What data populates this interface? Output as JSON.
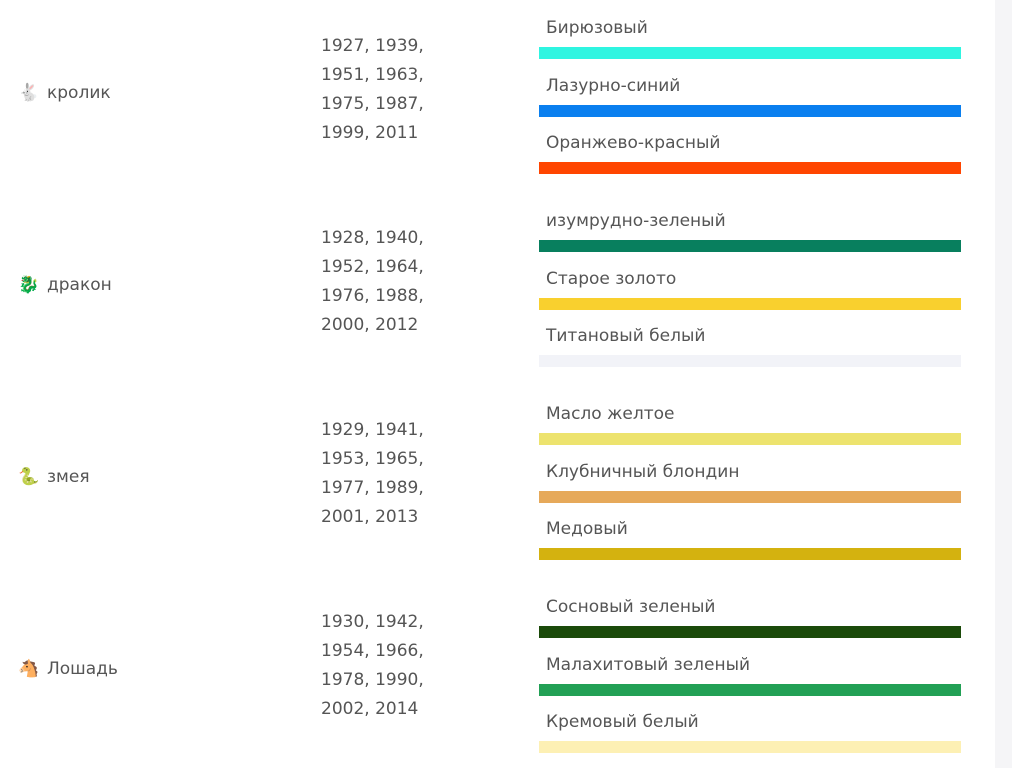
{
  "rows": [
    {
      "icon": "🐇",
      "name": "кролик",
      "years": [
        "1927, 1939,",
        "1951, 1963,",
        "1975, 1987,",
        "1999, 2011"
      ],
      "colors": [
        {
          "name": "Бирюзовый",
          "color": "#2ff5e1"
        },
        {
          "name": "Лазурно-синий",
          "color": "#0a7fef"
        },
        {
          "name": "Оранжево-красный",
          "color": "#ff4500"
        }
      ]
    },
    {
      "icon": "🐉",
      "name": "дракон",
      "years": [
        "1928, 1940,",
        "1952, 1964,",
        "1976, 1988,",
        "2000, 2012"
      ],
      "colors": [
        {
          "name": "изумрудно-зеленый",
          "color": "#087f5e"
        },
        {
          "name": "Старое золото",
          "color": "#f9d02e"
        },
        {
          "name": "Титановый белый",
          "color": "#f2f3f8"
        }
      ]
    },
    {
      "icon": "🐍",
      "name": "змея",
      "years": [
        "1929, 1941,",
        "1953, 1965,",
        "1977, 1989,",
        "2001, 2013"
      ],
      "colors": [
        {
          "name": "Масло желтое",
          "color": "#ede36e"
        },
        {
          "name": "Клубничный блондин",
          "color": "#e6a95a"
        },
        {
          "name": "Медовый",
          "color": "#d4b20f"
        }
      ]
    },
    {
      "icon": "🐴",
      "name": "Лошадь",
      "years": [
        "1930, 1942,",
        "1954, 1966,",
        "1978, 1990,",
        "2002, 2014"
      ],
      "colors": [
        {
          "name": "Сосновый зеленый",
          "color": "#1b4a0a"
        },
        {
          "name": "Малахитовый зеленый",
          "color": "#22a055"
        },
        {
          "name": "Кремовый белый",
          "color": "#fdf0b4"
        }
      ]
    }
  ]
}
